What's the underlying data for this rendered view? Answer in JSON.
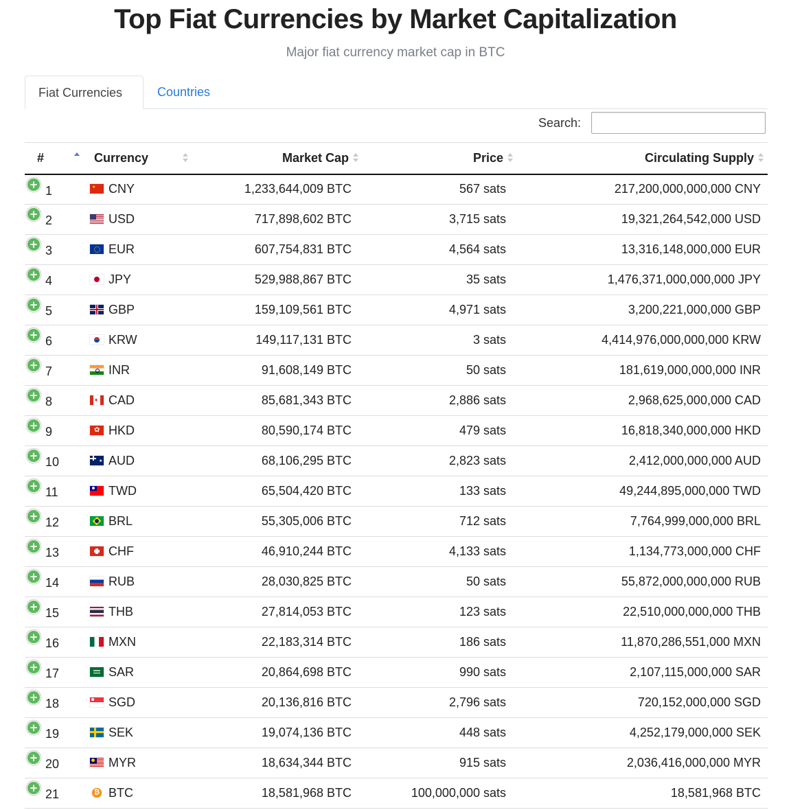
{
  "page": {
    "title": "Top Fiat Currencies by Market Capitalization",
    "subtitle": "Major fiat currency market cap in BTC"
  },
  "tabs": [
    {
      "label": "Fiat Currencies",
      "active": true
    },
    {
      "label": "Countries",
      "active": false
    }
  ],
  "search": {
    "label": "Search:",
    "value": ""
  },
  "table": {
    "headers": {
      "rank": "#",
      "currency": "Currency",
      "market_cap": "Market Cap",
      "price": "Price",
      "supply": "Circulating Supply"
    },
    "sorted_by": "rank",
    "sort_direction": "ascending",
    "rows": [
      {
        "rank": "1",
        "code": "CNY",
        "flag": "china-flag",
        "market_cap": "1,233,644,009 BTC",
        "price": "567 sats",
        "supply": "217,200,000,000,000 CNY"
      },
      {
        "rank": "2",
        "code": "USD",
        "flag": "usa-flag",
        "market_cap": "717,898,602 BTC",
        "price": "3,715 sats",
        "supply": "19,321,264,542,000 USD"
      },
      {
        "rank": "3",
        "code": "EUR",
        "flag": "eu-flag",
        "market_cap": "607,754,831 BTC",
        "price": "4,564 sats",
        "supply": "13,316,148,000,000 EUR"
      },
      {
        "rank": "4",
        "code": "JPY",
        "flag": "japan-flag",
        "market_cap": "529,988,867 BTC",
        "price": "35 sats",
        "supply": "1,476,371,000,000,000 JPY"
      },
      {
        "rank": "5",
        "code": "GBP",
        "flag": "uk-flag",
        "market_cap": "159,109,561 BTC",
        "price": "4,971 sats",
        "supply": "3,200,221,000,000 GBP"
      },
      {
        "rank": "6",
        "code": "KRW",
        "flag": "south-korea-flag",
        "market_cap": "149,117,131 BTC",
        "price": "3 sats",
        "supply": "4,414,976,000,000,000 KRW"
      },
      {
        "rank": "7",
        "code": "INR",
        "flag": "india-flag",
        "market_cap": "91,608,149 BTC",
        "price": "50 sats",
        "supply": "181,619,000,000,000 INR"
      },
      {
        "rank": "8",
        "code": "CAD",
        "flag": "canada-flag",
        "market_cap": "85,681,343 BTC",
        "price": "2,886 sats",
        "supply": "2,968,625,000,000 CAD"
      },
      {
        "rank": "9",
        "code": "HKD",
        "flag": "hong-kong-flag",
        "market_cap": "80,590,174 BTC",
        "price": "479 sats",
        "supply": "16,818,340,000,000 HKD"
      },
      {
        "rank": "10",
        "code": "AUD",
        "flag": "australia-flag",
        "market_cap": "68,106,295 BTC",
        "price": "2,823 sats",
        "supply": "2,412,000,000,000 AUD"
      },
      {
        "rank": "11",
        "code": "TWD",
        "flag": "taiwan-flag",
        "market_cap": "65,504,420 BTC",
        "price": "133 sats",
        "supply": "49,244,895,000,000 TWD"
      },
      {
        "rank": "12",
        "code": "BRL",
        "flag": "brazil-flag",
        "market_cap": "55,305,006 BTC",
        "price": "712 sats",
        "supply": "7,764,999,000,000 BRL"
      },
      {
        "rank": "13",
        "code": "CHF",
        "flag": "switzerland-flag",
        "market_cap": "46,910,244 BTC",
        "price": "4,133 sats",
        "supply": "1,134,773,000,000 CHF"
      },
      {
        "rank": "14",
        "code": "RUB",
        "flag": "russia-flag",
        "market_cap": "28,030,825 BTC",
        "price": "50 sats",
        "supply": "55,872,000,000,000 RUB"
      },
      {
        "rank": "15",
        "code": "THB",
        "flag": "thailand-flag",
        "market_cap": "27,814,053 BTC",
        "price": "123 sats",
        "supply": "22,510,000,000,000 THB"
      },
      {
        "rank": "16",
        "code": "MXN",
        "flag": "mexico-flag",
        "market_cap": "22,183,314 BTC",
        "price": "186 sats",
        "supply": "11,870,286,551,000 MXN"
      },
      {
        "rank": "17",
        "code": "SAR",
        "flag": "saudi-arabia-flag",
        "market_cap": "20,864,698 BTC",
        "price": "990 sats",
        "supply": "2,107,115,000,000 SAR"
      },
      {
        "rank": "18",
        "code": "SGD",
        "flag": "singapore-flag",
        "market_cap": "20,136,816 BTC",
        "price": "2,796 sats",
        "supply": "720,152,000,000 SGD"
      },
      {
        "rank": "19",
        "code": "SEK",
        "flag": "sweden-flag",
        "market_cap": "19,074,136 BTC",
        "price": "448 sats",
        "supply": "4,252,179,000,000 SEK"
      },
      {
        "rank": "20",
        "code": "MYR",
        "flag": "malaysia-flag",
        "market_cap": "18,634,344 BTC",
        "price": "915 sats",
        "supply": "2,036,416,000,000 MYR"
      },
      {
        "rank": "21",
        "code": "BTC",
        "flag": "bitcoin-icon",
        "market_cap": "18,581,968 BTC",
        "price": "100,000,000 sats",
        "supply": "18,581,968 BTC"
      }
    ]
  },
  "colors": {
    "accent_link": "#2a7ae2",
    "expand_button": "#5cb85c",
    "sort_active": "#5b73c7"
  }
}
